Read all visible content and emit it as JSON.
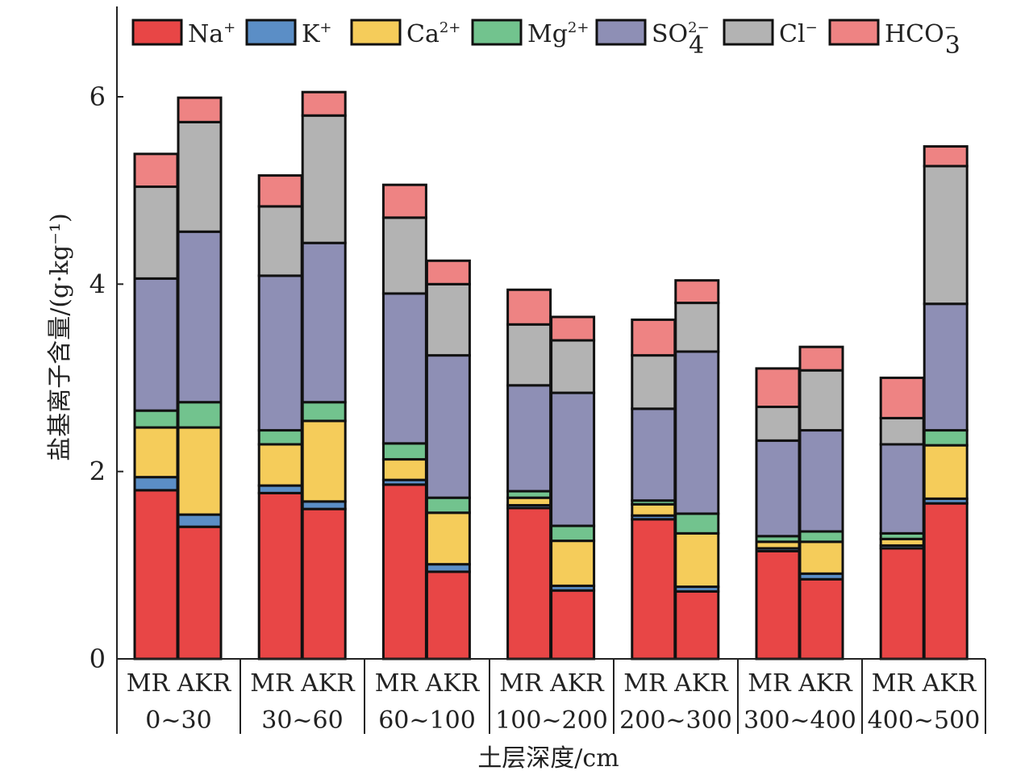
{
  "chart_data": {
    "type": "bar",
    "stacked": true,
    "xlabel": "土层深度/cm",
    "ylabel": "盐基离子含量/(g·kg⁻¹)",
    "ylim": [
      0,
      7
    ],
    "yticks": [
      "0",
      "2",
      "4",
      "6"
    ],
    "ytick_values": [
      0,
      2,
      4,
      6
    ],
    "grid": false,
    "legend_placement": "top",
    "depth_groups": [
      "0~30",
      "30~60",
      "60~100",
      "100~200",
      "200~300",
      "300~400",
      "400~500"
    ],
    "sub_categories": [
      "MR",
      "AKR"
    ],
    "series": [
      {
        "key": "na",
        "name": "Na+",
        "color": "#e84646",
        "values": [
          [
            1.8,
            1.41
          ],
          [
            1.77,
            1.6
          ],
          [
            1.86,
            0.93
          ],
          [
            1.61,
            0.73
          ],
          [
            1.49,
            0.72
          ],
          [
            1.15,
            0.85
          ],
          [
            1.18,
            1.66
          ]
        ]
      },
      {
        "key": "k",
        "name": "K+",
        "color": "#5b8ec6",
        "values": [
          [
            0.14,
            0.13
          ],
          [
            0.08,
            0.08
          ],
          [
            0.05,
            0.08
          ],
          [
            0.03,
            0.05
          ],
          [
            0.04,
            0.05
          ],
          [
            0.03,
            0.06
          ],
          [
            0.03,
            0.05
          ]
        ]
      },
      {
        "key": "ca",
        "name": "Ca2+",
        "color": "#f5cc5a",
        "values": [
          [
            0.53,
            0.93
          ],
          [
            0.44,
            0.86
          ],
          [
            0.22,
            0.55
          ],
          [
            0.08,
            0.48
          ],
          [
            0.12,
            0.57
          ],
          [
            0.07,
            0.34
          ],
          [
            0.07,
            0.57
          ]
        ]
      },
      {
        "key": "mg",
        "name": "Mg2+",
        "color": "#72c38e",
        "values": [
          [
            0.18,
            0.27
          ],
          [
            0.15,
            0.2
          ],
          [
            0.17,
            0.16
          ],
          [
            0.07,
            0.16
          ],
          [
            0.04,
            0.21
          ],
          [
            0.06,
            0.11
          ],
          [
            0.06,
            0.16
          ]
        ]
      },
      {
        "key": "so4",
        "name": "SO42−",
        "color": "#8e8fb5",
        "values": [
          [
            1.41,
            1.82
          ],
          [
            1.65,
            1.7
          ],
          [
            1.6,
            1.52
          ],
          [
            1.13,
            1.42
          ],
          [
            0.98,
            1.73
          ],
          [
            1.02,
            1.08
          ],
          [
            0.95,
            1.35
          ]
        ]
      },
      {
        "key": "cl",
        "name": "Cl−",
        "color": "#b3b3b3",
        "values": [
          [
            0.98,
            1.17
          ],
          [
            0.74,
            1.36
          ],
          [
            0.81,
            0.76
          ],
          [
            0.65,
            0.56
          ],
          [
            0.57,
            0.52
          ],
          [
            0.36,
            0.64
          ],
          [
            0.28,
            1.47
          ]
        ]
      },
      {
        "key": "hco3",
        "name": "HCO3−",
        "color": "#ee8383",
        "values": [
          [
            0.35,
            0.26
          ],
          [
            0.33,
            0.25
          ],
          [
            0.35,
            0.25
          ],
          [
            0.37,
            0.25
          ],
          [
            0.38,
            0.24
          ],
          [
            0.41,
            0.25
          ],
          [
            0.43,
            0.21
          ]
        ]
      }
    ]
  },
  "legend": [
    {
      "base": "Na",
      "sup": "+",
      "sub": ""
    },
    {
      "base": "K",
      "sup": "+",
      "sub": ""
    },
    {
      "base": "Ca",
      "sup": "2+",
      "sub": ""
    },
    {
      "base": "Mg",
      "sup": "2+",
      "sub": ""
    },
    {
      "base": "SO",
      "sup": "2−",
      "sub": "4"
    },
    {
      "base": "Cl",
      "sup": "−",
      "sub": ""
    },
    {
      "base": "HCO",
      "sup": "−",
      "sub": "3"
    }
  ]
}
